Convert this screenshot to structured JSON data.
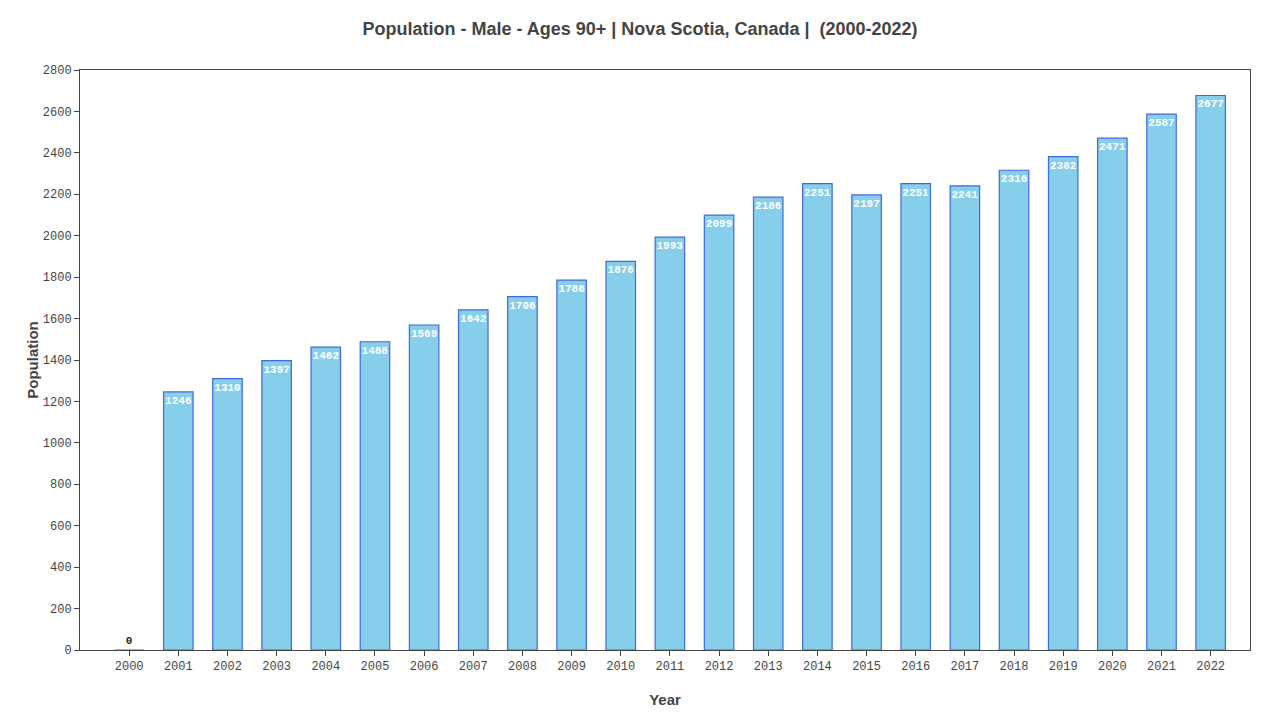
{
  "chart_data": {
    "type": "bar",
    "title": "Population - Male - Ages 90+ | Nova Scotia, Canada |  (2000-2022)",
    "xlabel": "Year",
    "ylabel": "Population",
    "x": [
      2000,
      2001,
      2002,
      2003,
      2004,
      2005,
      2006,
      2007,
      2008,
      2009,
      2010,
      2011,
      2012,
      2013,
      2014,
      2015,
      2016,
      2017,
      2018,
      2019,
      2020,
      2021,
      2022
    ],
    "values": [
      0,
      1246,
      1310,
      1397,
      1462,
      1488,
      1569,
      1642,
      1706,
      1786,
      1876,
      1993,
      2099,
      2186,
      2251,
      2197,
      2251,
      2241,
      2316,
      2382,
      2471,
      2587,
      2677
    ],
    "color": "#87CEEB",
    "xlim": [
      1999.0,
      2022.8
    ],
    "xticks": [
      2000,
      2001,
      2002,
      2003,
      2004,
      2005,
      2006,
      2007,
      2008,
      2009,
      2010,
      2011,
      2012,
      2013,
      2014,
      2015,
      2016,
      2017,
      2018,
      2019,
      2020,
      2021,
      2022
    ],
    "ylim": [
      0,
      2800
    ],
    "yticks": [
      0,
      200,
      400,
      600,
      800,
      1000,
      1200,
      1400,
      1600,
      1800,
      2000,
      2200,
      2400,
      2600,
      2800
    ],
    "grid": false,
    "data_labels": true
  }
}
